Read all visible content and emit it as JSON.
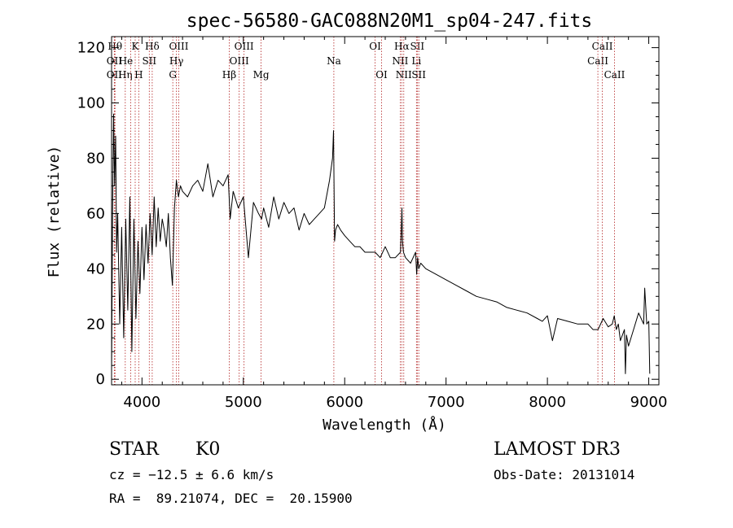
{
  "chart_data": {
    "type": "line",
    "title": "spec-56580-GAC088N20M1_sp04-247.fits",
    "xlabel": "Wavelength (Å)",
    "ylabel": "Flux (relative)",
    "xlim": [
      3700,
      9100
    ],
    "ylim": [
      -2,
      124
    ],
    "xticks": [
      4000,
      5000,
      6000,
      7000,
      8000,
      9000
    ],
    "yticks": [
      0,
      20,
      40,
      60,
      80,
      100,
      120
    ],
    "series": [
      {
        "name": "flux",
        "x": [
          3700,
          3710,
          3720,
          3730,
          3740,
          3750,
          3760,
          3780,
          3800,
          3820,
          3840,
          3860,
          3880,
          3900,
          3920,
          3940,
          3960,
          3980,
          4000,
          4020,
          4040,
          4060,
          4080,
          4100,
          4120,
          4140,
          4160,
          4180,
          4200,
          4220,
          4240,
          4260,
          4280,
          4300,
          4320,
          4340,
          4360,
          4380,
          4400,
          4450,
          4500,
          4550,
          4600,
          4650,
          4700,
          4750,
          4800,
          4850,
          4870,
          4900,
          4950,
          5000,
          5050,
          5100,
          5150,
          5180,
          5200,
          5250,
          5300,
          5350,
          5400,
          5450,
          5500,
          5550,
          5600,
          5650,
          5700,
          5750,
          5800,
          5850,
          5880,
          5890,
          5900,
          5910,
          5930,
          5960,
          6000,
          6050,
          6100,
          6150,
          6200,
          6250,
          6300,
          6350,
          6400,
          6450,
          6500,
          6550,
          6560,
          6565,
          6570,
          6580,
          6600,
          6650,
          6700,
          6710,
          6720,
          6730,
          6750,
          6800,
          6900,
          7000,
          7100,
          7200,
          7300,
          7400,
          7500,
          7600,
          7700,
          7800,
          7900,
          7950,
          8000,
          8050,
          8100,
          8200,
          8300,
          8400,
          8450,
          8500,
          8550,
          8600,
          8640,
          8660,
          8680,
          8700,
          8720,
          8740,
          8760,
          8770,
          8780,
          8800,
          8850,
          8900,
          8950,
          8960,
          8980,
          9000,
          9010
        ],
        "y": [
          2,
          60,
          96,
          70,
          88,
          46,
          60,
          20,
          55,
          15,
          58,
          25,
          66,
          10,
          58,
          22,
          50,
          31,
          55,
          36,
          56,
          42,
          60,
          45,
          66,
          48,
          62,
          50,
          58,
          54,
          48,
          60,
          44,
          34,
          62,
          72,
          66,
          70,
          68,
          66,
          70,
          72,
          68,
          78,
          66,
          72,
          70,
          74,
          58,
          68,
          62,
          66,
          44,
          64,
          60,
          58,
          62,
          55,
          66,
          58,
          64,
          60,
          62,
          54,
          60,
          56,
          58,
          60,
          62,
          72,
          80,
          90,
          50,
          54,
          56,
          54,
          52,
          50,
          48,
          48,
          46,
          46,
          46,
          44,
          48,
          44,
          44,
          46,
          56,
          62,
          50,
          46,
          44,
          42,
          46,
          38,
          44,
          40,
          42,
          40,
          38,
          36,
          34,
          32,
          30,
          29,
          28,
          26,
          25,
          24,
          22,
          21,
          23,
          14,
          22,
          21,
          20,
          20,
          18,
          18,
          22,
          19,
          20,
          23,
          18,
          20,
          14,
          16,
          18,
          2,
          16,
          12,
          18,
          24,
          20,
          33,
          20,
          21,
          2
        ]
      }
    ],
    "lines": [
      {
        "label": "Hθ",
        "x": 3734,
        "row": 0,
        "dx": 0
      },
      {
        "label": "OII",
        "x": 3727,
        "row": 1,
        "dx": 0
      },
      {
        "label": "OII",
        "x": 3727,
        "row": 2,
        "dx": 0
      },
      {
        "label": "Hη",
        "x": 3835,
        "row": 2,
        "dx": 0
      },
      {
        "label": "He",
        "x": 3889,
        "row": 1,
        "dx": -6
      },
      {
        "label": "K",
        "x": 3933,
        "row": 0,
        "dx": 0
      },
      {
        "label": "H",
        "x": 3968,
        "row": 2,
        "dx": 0
      },
      {
        "label": "SII",
        "x": 4072,
        "row": 1,
        "dx": 0
      },
      {
        "label": "Hδ",
        "x": 4101,
        "row": 0,
        "dx": 0
      },
      {
        "label": "G",
        "x": 4304,
        "row": 2,
        "dx": 0
      },
      {
        "label": "OIII",
        "x": 4363,
        "row": 0,
        "dx": 0
      },
      {
        "label": "Hγ",
        "x": 4340,
        "row": 1,
        "dx": 0
      },
      {
        "label": "Hβ",
        "x": 4861,
        "row": 2,
        "dx": 0
      },
      {
        "label": "OIII",
        "x": 4959,
        "row": 1,
        "dx": 0
      },
      {
        "label": "OIII",
        "x": 5007,
        "row": 0,
        "dx": 0
      },
      {
        "label": "Mg",
        "x": 5175,
        "row": 2,
        "dx": 0
      },
      {
        "label": "Na",
        "x": 5893,
        "row": 1,
        "dx": 0
      },
      {
        "label": "OI",
        "x": 6300,
        "row": 0,
        "dx": 0
      },
      {
        "label": "OI",
        "x": 6364,
        "row": 2,
        "dx": 0
      },
      {
        "label": "NII",
        "x": 6548,
        "row": 1,
        "dx": 0
      },
      {
        "label": "Hα",
        "x": 6563,
        "row": 0,
        "dx": 0
      },
      {
        "label": "NII",
        "x": 6583,
        "row": 2,
        "dx": 0
      },
      {
        "label": "Li",
        "x": 6708,
        "row": 1,
        "dx": 0
      },
      {
        "label": "SII",
        "x": 6716,
        "row": 0,
        "dx": 0
      },
      {
        "label": "SII",
        "x": 6731,
        "row": 2,
        "dx": 0
      },
      {
        "label": "CaII",
        "x": 8498,
        "row": 1,
        "dx": 0
      },
      {
        "label": "CaII",
        "x": 8542,
        "row": 0,
        "dx": 0
      },
      {
        "label": "CaII",
        "x": 8662,
        "row": 2,
        "dx": 0
      }
    ]
  },
  "footer": {
    "class_label": "STAR",
    "subclass": "K0",
    "survey": "LAMOST DR3",
    "cz": "cz = −12.5 ± 6.6 km/s",
    "obs_date": "Obs-Date: 20131014",
    "coords": "RA =  89.21074, DEC =  20.15900"
  },
  "colors": {
    "line_marker": "#b22222",
    "spectrum": "#000000"
  }
}
